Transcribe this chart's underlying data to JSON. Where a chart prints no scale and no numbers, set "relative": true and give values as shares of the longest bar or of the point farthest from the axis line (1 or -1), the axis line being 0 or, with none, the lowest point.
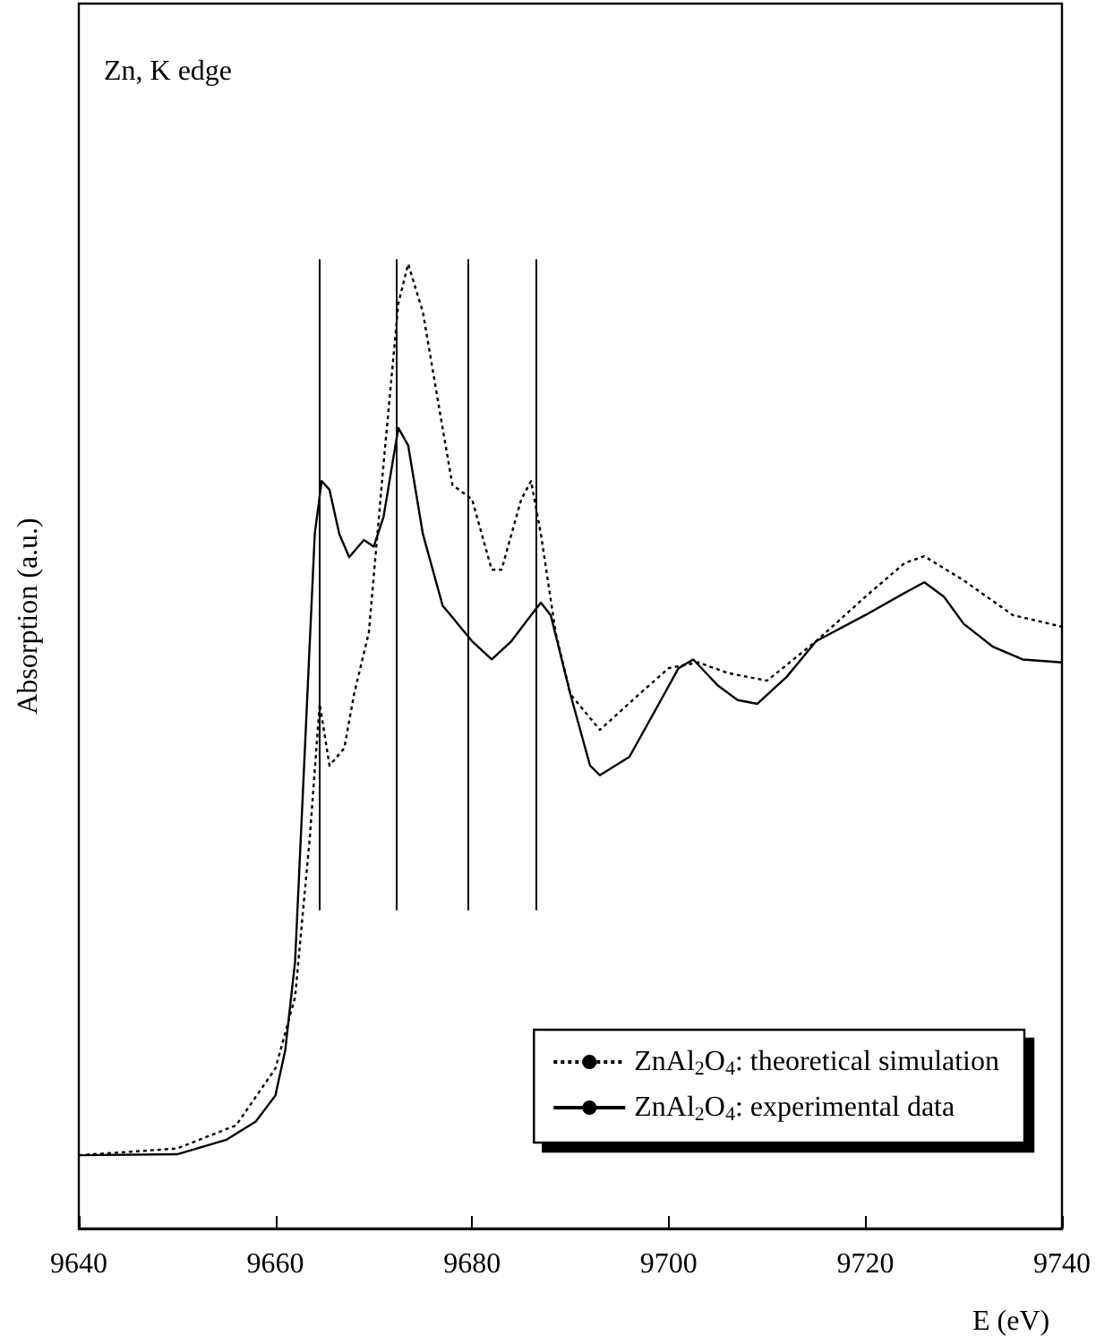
{
  "chart_data": {
    "type": "line",
    "relative": true,
    "xlabel": "E (eV)",
    "ylabel": "Absorption (a.u.)",
    "annotations": [
      "Zn, K edge"
    ],
    "xlim": [
      9640,
      9740
    ],
    "xticks": [
      9640,
      9660,
      9680,
      9700,
      9720,
      9740
    ],
    "grid": false,
    "legend": "bottom right",
    "marker": "none",
    "series": [
      {
        "name": "ZnAl$_{2}$O$_{4}$: theoretical simulation",
        "color": "#000000",
        "line_style": "dotted",
        "x": [
          9640,
          9650,
          9656,
          9660,
          9662,
          9663.5,
          9664.5,
          9665.5,
          9667,
          9668,
          9669.5,
          9671,
          9672.5,
          9673.5,
          9675,
          9677,
          9678,
          9680,
          9682,
          9683,
          9685,
          9686,
          9687,
          9688.5,
          9690,
          9693,
          9697,
          9700,
          9703,
          9706,
          9710,
          9715,
          9720,
          9724,
          9726,
          9730,
          9735,
          9740
        ],
        "values": [
          0.076,
          0.083,
          0.107,
          0.166,
          0.24,
          0.406,
          0.544,
          0.48,
          0.498,
          0.554,
          0.618,
          0.793,
          0.959,
          1.0,
          0.95,
          0.83,
          0.771,
          0.756,
          0.683,
          0.683,
          0.756,
          0.775,
          0.72,
          0.618,
          0.554,
          0.517,
          0.554,
          0.581,
          0.587,
          0.576,
          0.568,
          0.609,
          0.655,
          0.69,
          0.697,
          0.672,
          0.636,
          0.624
        ]
      },
      {
        "name": "ZnAl$_{2}$O$_{4}$: experimental data",
        "color": "#000000",
        "line_style": "solid",
        "x": [
          9640,
          9650,
          9655,
          9658,
          9660,
          9661,
          9662,
          9663,
          9664,
          9664.7,
          9665.5,
          9666.5,
          9667.5,
          9669,
          9670,
          9671,
          9672.5,
          9673.5,
          9675,
          9677,
          9680,
          9682,
          9684,
          9686,
          9687,
          9688,
          9690,
          9692,
          9693,
          9696,
          9699,
          9701,
          9702.5,
          9705,
          9707,
          9709,
          9712,
          9715,
          9720,
          9724,
          9726,
          9728,
          9730,
          9733,
          9736,
          9740
        ],
        "values": [
          0.076,
          0.077,
          0.092,
          0.111,
          0.138,
          0.185,
          0.277,
          0.498,
          0.72,
          0.775,
          0.766,
          0.72,
          0.696,
          0.714,
          0.707,
          0.738,
          0.83,
          0.812,
          0.72,
          0.646,
          0.609,
          0.59,
          0.609,
          0.636,
          0.649,
          0.636,
          0.554,
          0.48,
          0.47,
          0.489,
          0.544,
          0.581,
          0.59,
          0.563,
          0.548,
          0.544,
          0.572,
          0.609,
          0.636,
          0.659,
          0.67,
          0.655,
          0.627,
          0.603,
          0.59,
          0.587
        ]
      }
    ],
    "ref_lines": [
      {
        "axis": "x",
        "value": 9664.5,
        "color": "#000000"
      },
      {
        "axis": "x",
        "value": 9672.3,
        "color": "#000000"
      },
      {
        "axis": "x",
        "value": 9679.6,
        "color": "#000000"
      },
      {
        "axis": "x",
        "value": 9686.5,
        "color": "#000000"
      }
    ]
  }
}
